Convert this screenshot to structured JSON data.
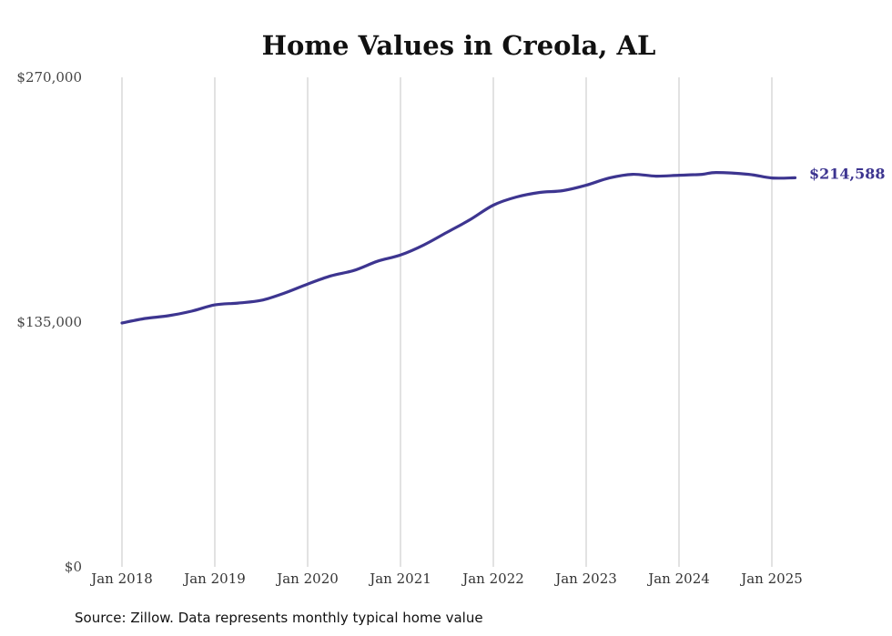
{
  "chart_data": {
    "type": "line",
    "title": "Home Values in Creola, AL",
    "xlabel": "",
    "ylabel": "",
    "ylim": [
      0,
      270000
    ],
    "y_ticks": [
      "$0",
      "$135,000",
      "$270,000"
    ],
    "y_tick_values": [
      0,
      135000,
      270000
    ],
    "x_ticks": [
      "Jan 2018",
      "Jan 2019",
      "Jan 2020",
      "Jan 2021",
      "Jan 2022",
      "Jan 2023",
      "Jan 2024",
      "Jan 2025"
    ],
    "x_tick_values": [
      2018,
      2019,
      2020,
      2021,
      2022,
      2023,
      2024,
      2025
    ],
    "grid": "vertical",
    "line_color": "#3d3590",
    "end_label": "$214,588",
    "series": [
      {
        "x": [
          2018.0,
          2018.25,
          2018.5,
          2018.75,
          2019.0,
          2019.25,
          2019.5,
          2019.75,
          2020.0,
          2020.25,
          2020.5,
          2020.75,
          2021.0,
          2021.25,
          2021.5,
          2021.75,
          2022.0,
          2022.25,
          2022.5,
          2022.75,
          2023.0,
          2023.25,
          2023.5,
          2023.75,
          2024.0,
          2024.25,
          2024.4,
          2024.75,
          2025.0,
          2025.25
        ],
        "values": [
          134500,
          137000,
          138500,
          141000,
          144500,
          145500,
          147000,
          151000,
          156000,
          160500,
          163500,
          168500,
          172000,
          177500,
          184500,
          191500,
          199500,
          204000,
          206500,
          207500,
          210500,
          214500,
          216500,
          215500,
          216000,
          216500,
          217500,
          216500,
          214500,
          214588
        ]
      }
    ]
  },
  "source_note": "Source: Zillow. Data represents monthly typical home value"
}
